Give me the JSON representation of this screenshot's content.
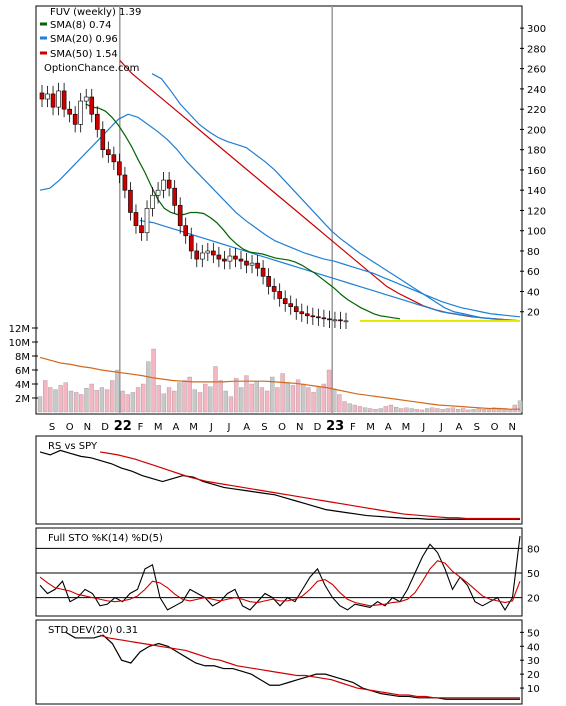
{
  "colors": {
    "sma8": "#006400",
    "sma20": "#1e7fd6",
    "sma50": "#cc0000",
    "flat": "#e6e600",
    "down_candle": "#cc0000",
    "vol_up": "#f4b6c2",
    "vol_down": "#c8c8c8",
    "vol_avg": "#d2691e",
    "grid": "#c8c8c8",
    "stoch_k": "#000000",
    "stoch_d": "#cc0000"
  },
  "chart_data": [
    {
      "type": "candlestick",
      "title": "FUV (weekly) 1.39",
      "watermark": "OptionChance.com",
      "legend": [
        {
          "label": "SMA(8) 0.74",
          "color": "#006400"
        },
        {
          "label": "SMA(20) 0.96",
          "color": "#1e7fd6"
        },
        {
          "label": "SMA(50) 1.54",
          "color": "#cc0000"
        }
      ],
      "x_labels": [
        "S",
        "O",
        "N",
        "D",
        "22",
        "F",
        "M",
        "A",
        "M",
        "J",
        "J",
        "A",
        "S",
        "O",
        "N",
        "D",
        "23",
        "F",
        "M",
        "A",
        "M",
        "J",
        "J",
        "A",
        "S",
        "O",
        "N"
      ],
      "price_ticks": [
        20,
        40,
        60,
        80,
        100,
        120,
        140,
        160,
        180,
        200,
        220,
        240,
        260,
        280,
        300
      ],
      "ylim": [
        0,
        310
      ],
      "ohlc_week_close": [
        230,
        235,
        222,
        238,
        220,
        215,
        205,
        228,
        232,
        215,
        200,
        180,
        175,
        168,
        155,
        140,
        118,
        105,
        98,
        122,
        135,
        140,
        150,
        142,
        125,
        105,
        95,
        80,
        72,
        78,
        80,
        76,
        72,
        70,
        75,
        72,
        70,
        66,
        68,
        63,
        55,
        45,
        40,
        33,
        28,
        25,
        20,
        18,
        16,
        15,
        14,
        13,
        12,
        12,
        11,
        11
      ],
      "sma8": [
        null,
        null,
        null,
        null,
        null,
        null,
        null,
        225,
        222,
        221,
        218,
        212,
        204,
        194,
        183,
        170,
        158,
        144,
        131,
        122,
        118,
        116,
        116,
        118,
        118,
        117,
        113,
        108,
        101,
        93,
        87,
        82,
        79,
        78,
        77,
        75,
        73,
        72,
        71,
        69,
        66,
        62,
        58,
        53,
        48,
        43,
        37,
        32,
        28,
        24,
        21,
        18,
        16,
        15,
        14,
        13
      ],
      "sma20": [
        140,
        142,
        150,
        160,
        170,
        180,
        190,
        200,
        210,
        215,
        212,
        205,
        198,
        190,
        180,
        168,
        158,
        148,
        138,
        128,
        118,
        110,
        103,
        96,
        90,
        86,
        82,
        78,
        75,
        72,
        70,
        67,
        64,
        61,
        58,
        54,
        50,
        46,
        42,
        38,
        34,
        30,
        27,
        24,
        22,
        20,
        18,
        17,
        16,
        15
      ],
      "sma20_upper": [
        255,
        250,
        238,
        225,
        215,
        205,
        198,
        192,
        188,
        185,
        182,
        175,
        168,
        160,
        150,
        140,
        130,
        120,
        110,
        100,
        92,
        85,
        78,
        72,
        66,
        60,
        54,
        48,
        42,
        36,
        30,
        24,
        20,
        18,
        16,
        14,
        13,
        12,
        12,
        11
      ],
      "sma20_lower": [
        110,
        108,
        104,
        100,
        96,
        92,
        88,
        84,
        80,
        76,
        72,
        68,
        64,
        60,
        56,
        52,
        48,
        44,
        40,
        36,
        32,
        28,
        24,
        20,
        18,
        16,
        14,
        13,
        12,
        11
      ],
      "sma50": [
        268,
        255,
        245,
        235,
        225,
        215,
        205,
        195,
        185,
        175,
        165,
        155,
        145,
        135,
        125,
        115,
        105,
        95,
        85,
        75,
        65,
        55,
        45,
        38,
        32,
        26,
        22,
        19,
        17,
        15,
        14,
        13,
        12,
        11
      ],
      "volume_ticks": [
        "12M",
        "10M",
        "8M",
        "6M",
        "4M",
        "2M"
      ],
      "volume_ylim": [
        0,
        12
      ],
      "volume_M": [
        2.2,
        4.5,
        3.5,
        3.2,
        3.8,
        4.2,
        3.0,
        2.8,
        2.5,
        3.4,
        4.0,
        3.1,
        3.5,
        3.2,
        4.5,
        6.0,
        3.0,
        2.5,
        2.8,
        3.5,
        4.0,
        7.2,
        9.0,
        3.8,
        2.6,
        3.5,
        3.0,
        4.2,
        4.5,
        5.0,
        3.2,
        2.8,
        4.0,
        3.6,
        6.5,
        4.5,
        3.0,
        2.2,
        4.8,
        3.5,
        5.2,
        4.0,
        4.4,
        3.5,
        3.0,
        5.0,
        3.5,
        5.5,
        4.2,
        3.8,
        4.6,
        4.0,
        3.5,
        2.8,
        3.5,
        4.0,
        6.0,
        3.3,
        2.5,
        1.5,
        1.2,
        1.0,
        0.8,
        0.6,
        0.5,
        0.4,
        0.5,
        0.8,
        1.0,
        0.7,
        0.5,
        0.6,
        0.5,
        0.4,
        0.3,
        0.5,
        0.6,
        0.5,
        0.4,
        0.5,
        0.6,
        0.4,
        0.5,
        0.3,
        0.4,
        0.5,
        0.4,
        0.5,
        0.6,
        0.4,
        0.5,
        0.4,
        1.0,
        1.6
      ],
      "volume_avg_M": [
        7.8,
        7.4,
        7.0,
        6.8,
        6.5,
        6.3,
        6.0,
        5.8,
        5.6,
        5.4,
        5.2,
        4.9,
        4.7,
        4.5,
        4.4,
        4.3,
        4.3,
        4.3,
        4.3,
        4.4,
        4.4,
        4.4,
        4.4,
        4.3,
        4.2,
        4.1,
        3.9,
        3.7,
        3.5,
        3.2,
        2.9,
        2.6,
        2.4,
        2.2,
        2.0,
        1.8,
        1.6,
        1.4,
        1.2,
        1.0,
        0.9,
        0.8,
        0.7,
        0.6,
        0.5,
        0.5,
        0.4,
        0.4
      ]
    },
    {
      "type": "line",
      "title": "RS vs SPY",
      "series": [
        {
          "name": "RS vs SPY",
          "values": [
            92,
            88,
            94,
            90,
            86,
            84,
            80,
            76,
            70,
            66,
            60,
            56,
            52,
            56,
            60,
            58,
            52,
            48,
            44,
            42,
            40,
            38,
            36,
            34,
            30,
            26,
            22,
            18,
            14,
            12,
            10,
            8,
            6,
            5,
            4,
            3,
            2,
            2,
            1,
            1,
            1,
            1,
            1,
            1,
            1,
            1,
            1,
            1
          ]
        },
        {
          "values": [
            92,
            90,
            88,
            85,
            82,
            78,
            74,
            70,
            66,
            62,
            58,
            55,
            52,
            50,
            48,
            46,
            44,
            42,
            40,
            38,
            36,
            34,
            32,
            30,
            28,
            26,
            24,
            22,
            20,
            18,
            16,
            14,
            12,
            10,
            8,
            7,
            6,
            5,
            4,
            3,
            3,
            2,
            2,
            2,
            2,
            2,
            2,
            2
          ]
        }
      ],
      "ylim": [
        0,
        100
      ]
    },
    {
      "type": "line",
      "title": "Full STO %K(14) %D(5)",
      "y_ticks": [
        20,
        50,
        80
      ],
      "ylim": [
        0,
        100
      ],
      "series": [
        {
          "name": "%K(14)",
          "values": [
            35,
            25,
            30,
            40,
            15,
            20,
            30,
            25,
            10,
            12,
            20,
            15,
            25,
            30,
            55,
            60,
            20,
            5,
            10,
            15,
            30,
            25,
            20,
            10,
            15,
            25,
            30,
            10,
            5,
            15,
            25,
            20,
            10,
            20,
            15,
            30,
            45,
            55,
            35,
            20,
            10,
            5,
            12,
            10,
            8,
            15,
            10,
            20,
            15,
            30,
            50,
            70,
            85,
            75,
            55,
            30,
            45,
            35,
            15,
            10,
            15,
            20,
            5,
            20,
            95
          ]
        },
        {
          "name": "%D(5)",
          "values": [
            45,
            38,
            32,
            30,
            28,
            24,
            22,
            20,
            18,
            16,
            15,
            16,
            18,
            22,
            30,
            40,
            38,
            32,
            24,
            18,
            16,
            18,
            20,
            18,
            16,
            18,
            20,
            18,
            15,
            14,
            16,
            18,
            16,
            16,
            18,
            22,
            30,
            40,
            42,
            36,
            26,
            18,
            14,
            12,
            10,
            11,
            12,
            14,
            15,
            18,
            26,
            40,
            55,
            65,
            62,
            52,
            45,
            38,
            30,
            22,
            18,
            16,
            14,
            16,
            40
          ]
        }
      ]
    },
    {
      "type": "line",
      "title": "STD DEV(20) 0.31",
      "y_ticks": [
        10,
        20,
        30,
        40,
        50
      ],
      "ylim": [
        0,
        56
      ],
      "series": [
        {
          "name": "STD DEV(20)",
          "values": [
            50,
            46,
            46,
            46,
            48,
            42,
            30,
            28,
            36,
            40,
            42,
            40,
            36,
            32,
            28,
            26,
            26,
            24,
            24,
            22,
            20,
            16,
            12,
            12,
            14,
            16,
            18,
            20,
            20,
            18,
            16,
            14,
            10,
            8,
            6,
            5,
            4,
            4,
            3,
            3,
            3,
            2,
            2,
            2,
            2,
            2,
            2,
            2,
            2,
            2
          ]
        },
        {
          "values": [
            48,
            46,
            45,
            44,
            43,
            42,
            41,
            40,
            39,
            38,
            37,
            35,
            33,
            31,
            30,
            28,
            26,
            25,
            24,
            23,
            22,
            21,
            20,
            19,
            19,
            18,
            17,
            16,
            14,
            12,
            10,
            9,
            8,
            7,
            6,
            5,
            5,
            4,
            4,
            3,
            3,
            3,
            3,
            3,
            3,
            3,
            3,
            3,
            3,
            3
          ]
        }
      ]
    }
  ]
}
